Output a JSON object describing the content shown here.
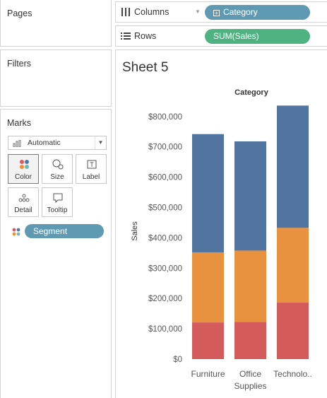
{
  "pages": {
    "title": "Pages"
  },
  "filters": {
    "title": "Filters"
  },
  "marks": {
    "title": "Marks",
    "mark_type": "Automatic",
    "buttons": {
      "color": "Color",
      "size": "Size",
      "label": "Label",
      "detail": "Detail",
      "tooltip": "Tooltip"
    },
    "color_field": "Segment"
  },
  "shelves": {
    "columns": {
      "label": "Columns",
      "pill": "Category",
      "pill_color": "#5f9ab2"
    },
    "rows": {
      "label": "Rows",
      "pill": "SUM(Sales)",
      "pill_color": "#4fb281"
    }
  },
  "sheet": {
    "title": "Sheet 5"
  },
  "chart_data": {
    "type": "bar",
    "stacked": true,
    "title": "Category",
    "ylabel": "Sales",
    "xlabel": "",
    "categories": [
      "Furniture",
      "Office Supplies",
      "Technolo.."
    ],
    "category_label_lines": [
      [
        "Furniture"
      ],
      [
        "Office",
        "Supplies"
      ],
      [
        "Technolo.."
      ]
    ],
    "ylim": [
      0,
      860000
    ],
    "yticks": [
      0,
      100000,
      200000,
      300000,
      400000,
      500000,
      600000,
      700000,
      800000
    ],
    "ytick_labels": [
      "$0",
      "$100,000",
      "$200,000",
      "$300,000",
      "$400,000",
      "$500,000",
      "$600,000",
      "$700,000",
      "$800,000"
    ],
    "series": [
      {
        "values": [
          121000,
          123000,
          187000
        ],
        "color": "#d45b5b"
      },
      {
        "values": [
          231000,
          235000,
          246000
        ],
        "color": "#e8913f"
      },
      {
        "values": [
          390000,
          360000,
          403000
        ],
        "color": "#52759f"
      }
    ],
    "grid": false,
    "legend": "none"
  }
}
